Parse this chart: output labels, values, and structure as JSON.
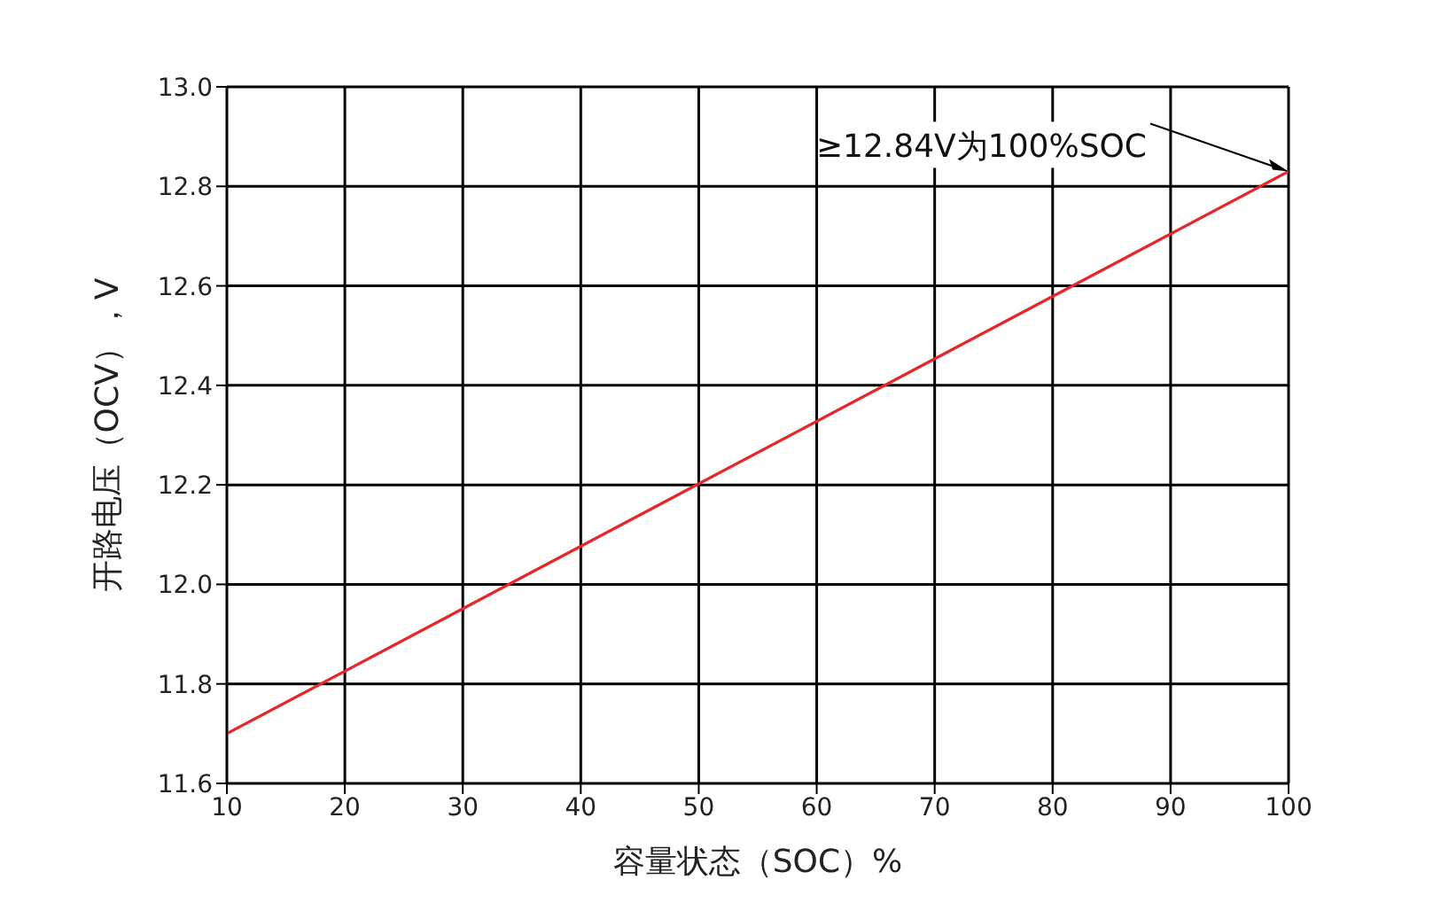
{
  "chart_data": {
    "type": "line",
    "xlabel": "容量状态（SOC）%",
    "ylabel": "开路电压（OCV），V",
    "x": [
      10,
      100
    ],
    "series": [
      {
        "color": "#e8262a",
        "values": [
          11.7,
          12.83
        ]
      }
    ],
    "xlim": [
      10,
      100
    ],
    "xticks": [
      10,
      20,
      30,
      40,
      50,
      60,
      70,
      80,
      90,
      100
    ],
    "ylim": [
      11.6,
      13.0
    ],
    "yticks": [
      {
        "value": 11.6,
        "label": "11.6"
      },
      {
        "value": 11.8,
        "label": "11.8"
      },
      {
        "value": 12.0,
        "label": "12.0"
      },
      {
        "value": 12.2,
        "label": "12.2"
      },
      {
        "value": 12.4,
        "label": "12.4"
      },
      {
        "value": 12.6,
        "label": "12.6"
      },
      {
        "value": 12.8,
        "label": "12.8"
      },
      {
        "value": 13.0,
        "label": "13.0"
      }
    ],
    "grid": true,
    "marker": "none",
    "line_style": "solid",
    "annotations": [
      {
        "text": "≥12.84V为100%SOC",
        "x": 100,
        "y": 12.83
      }
    ]
  }
}
